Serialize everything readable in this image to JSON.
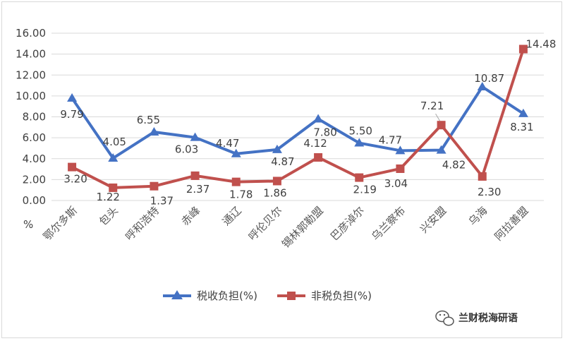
{
  "chart_data": {
    "type": "line",
    "title": "",
    "xlabel": "",
    "ylabel": "",
    "y_unit_label": "%",
    "ylim": [
      0,
      16
    ],
    "yticks": [
      "0.00",
      "2.00",
      "4.00",
      "6.00",
      "8.00",
      "10.00",
      "12.00",
      "14.00",
      "16.00"
    ],
    "grid": "horizontal",
    "legend_position": "bottom",
    "categories": [
      "鄂尔多斯",
      "包头",
      "呼和浩特",
      "赤峰",
      "通辽",
      "呼伦贝尔",
      "锡林郭勒盟",
      "巴彦淖尔",
      "乌兰察布",
      "兴安盟",
      "乌海",
      "阿拉善盟"
    ],
    "series": [
      {
        "name": "税收负担(%)",
        "color": "#4472c4",
        "marker": "triangle",
        "values": [
          9.79,
          4.05,
          6.55,
          6.03,
          4.47,
          4.87,
          7.8,
          5.5,
          4.77,
          4.82,
          10.87,
          8.31
        ],
        "labels": [
          "9.79",
          "4.05",
          "6.55",
          "6.03",
          "4.47",
          "4.87",
          "7.80",
          "5.50",
          "4.77",
          "4.82",
          "10.87",
          "8.31"
        ]
      },
      {
        "name": "非税负担(%)",
        "color": "#c0504d",
        "marker": "square",
        "values": [
          3.2,
          1.22,
          1.37,
          2.37,
          1.78,
          1.86,
          4.12,
          2.19,
          3.04,
          7.21,
          2.3,
          14.48
        ],
        "labels": [
          "3.20",
          "1.22",
          "1.37",
          "2.37",
          "1.78",
          "1.86",
          "4.12",
          "2.19",
          "3.04",
          "7.21",
          "2.30",
          "14.48"
        ]
      }
    ]
  },
  "watermark": {
    "icon": "wechat-icon",
    "text": "兰财税海研语"
  }
}
